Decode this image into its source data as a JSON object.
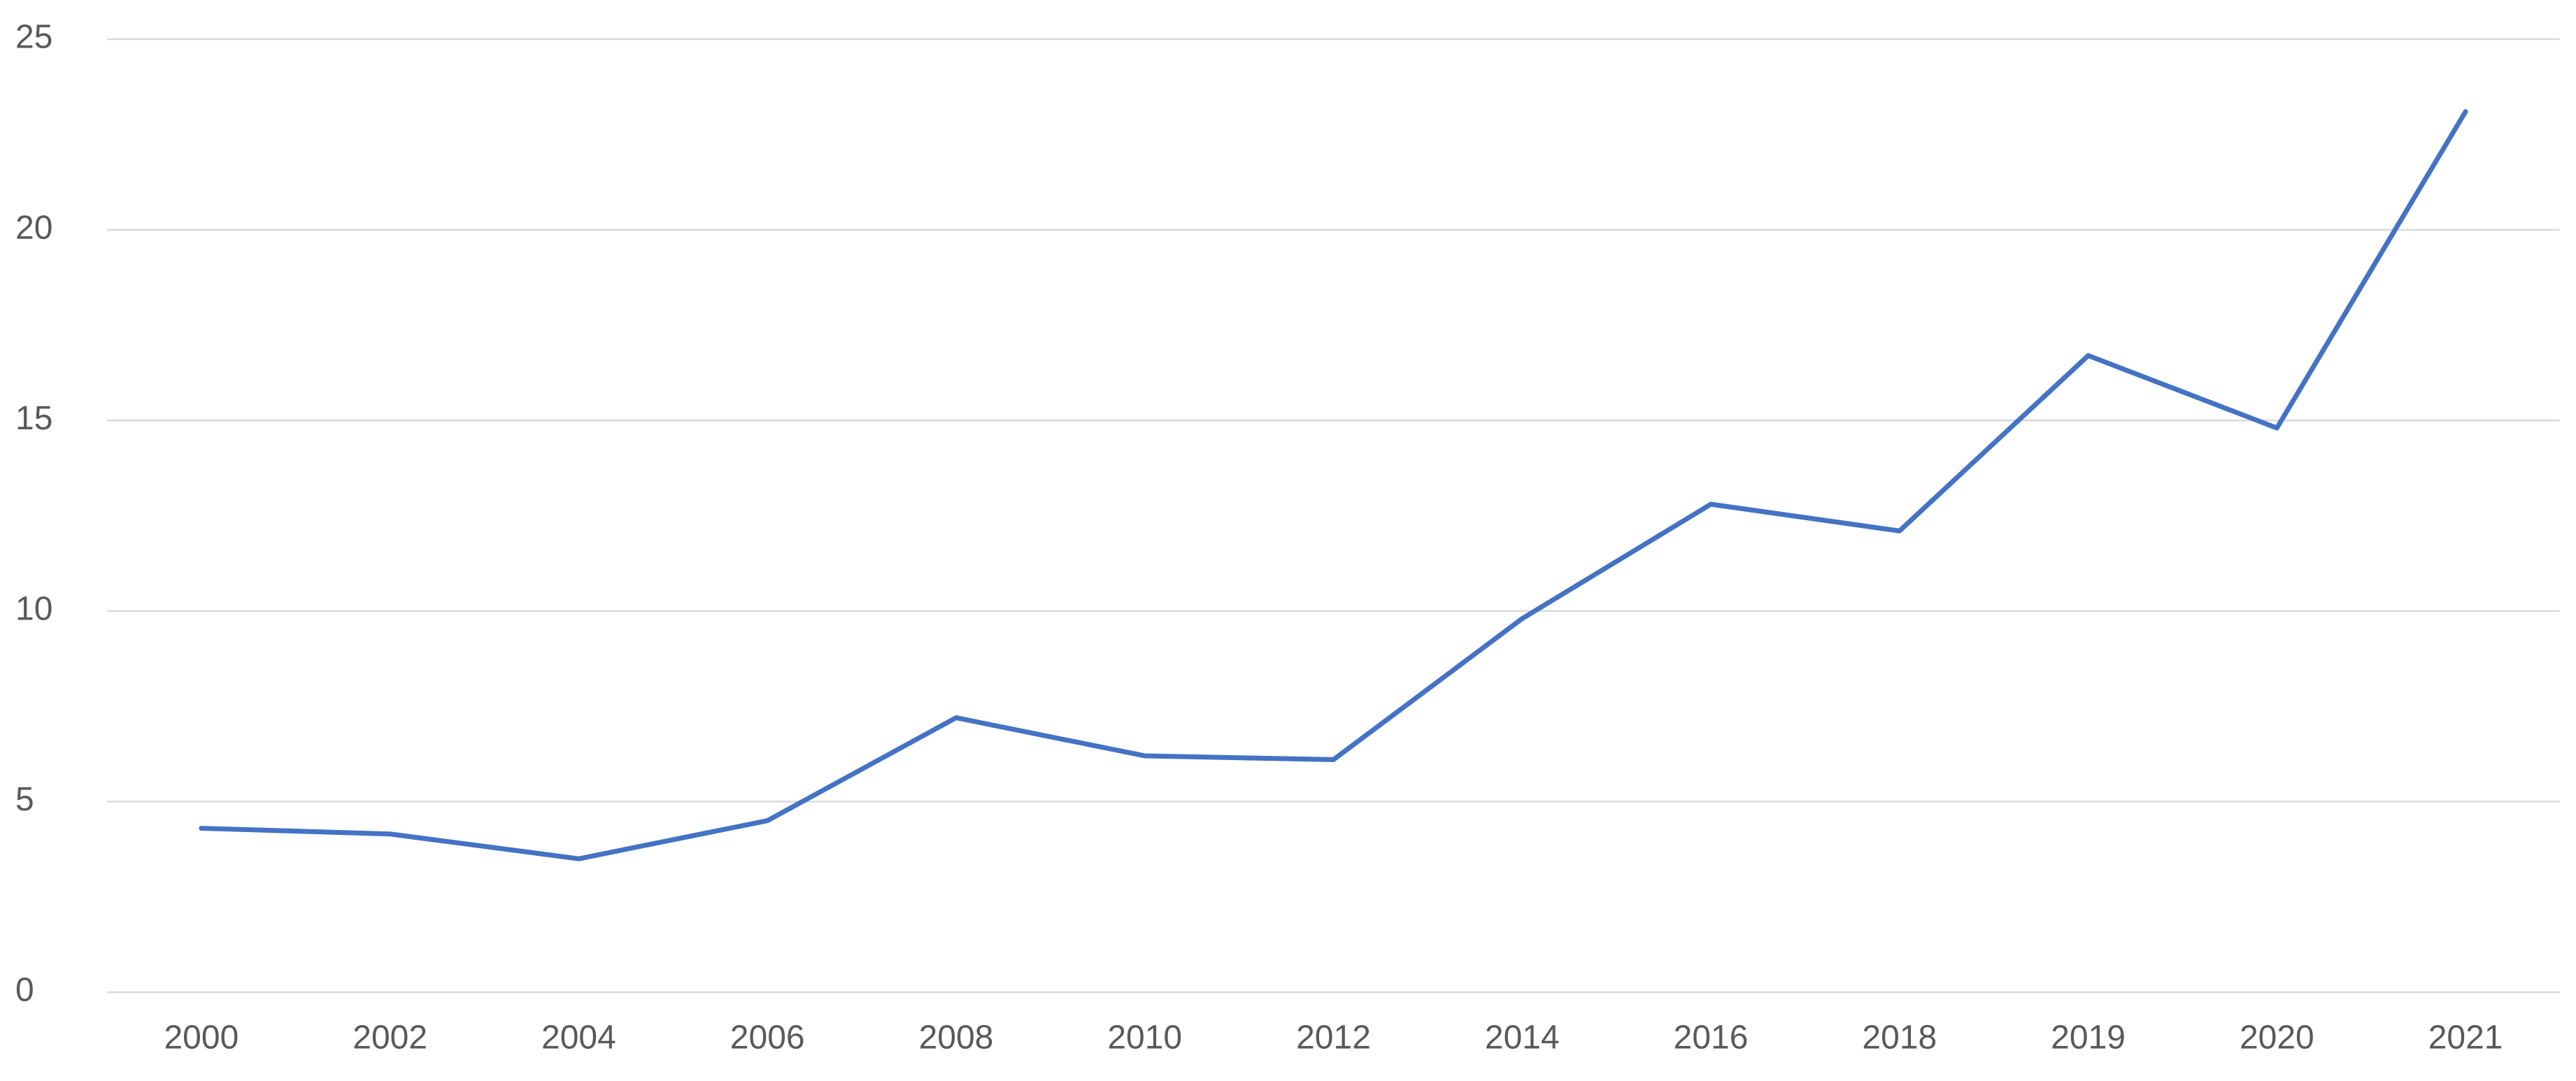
{
  "chart_data": {
    "type": "line",
    "categories": [
      "2000",
      "2002",
      "2004",
      "2006",
      "2008",
      "2010",
      "2012",
      "2014",
      "2016",
      "2018",
      "2019",
      "2020",
      "2021"
    ],
    "values": [
      4.3,
      4.15,
      3.5,
      4.5,
      7.2,
      6.2,
      6.1,
      9.8,
      12.8,
      12.1,
      16.7,
      14.8,
      23.1
    ],
    "color": "#4472c4",
    "ylim": [
      0,
      25
    ],
    "yticks": [
      0,
      5,
      10,
      15,
      20,
      25
    ],
    "grid": true
  }
}
